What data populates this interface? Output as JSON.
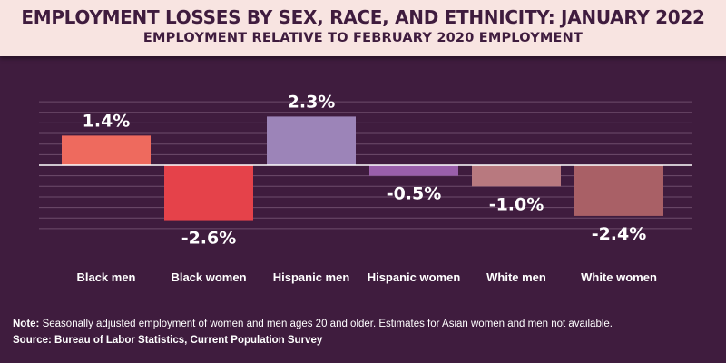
{
  "header": {
    "title": "EMPLOYMENT LOSSES BY SEX, RACE, AND ETHNICITY: JANUARY 2022",
    "subtitle": "EMPLOYMENT RELATIVE TO FEBRUARY 2020 EMPLOYMENT"
  },
  "chart_data": {
    "type": "bar",
    "title": "EMPLOYMENT LOSSES BY SEX, RACE, AND ETHNICITY: JANUARY 2022",
    "subtitle": "EMPLOYMENT RELATIVE TO FEBRUARY 2020 EMPLOYMENT",
    "categories": [
      "Black men",
      "Black women",
      "Hispanic men",
      "Hispanic women",
      "White men",
      "White women"
    ],
    "values": [
      1.4,
      -2.6,
      2.3,
      -0.5,
      -1.0,
      -2.4
    ],
    "value_labels": [
      "1.4%",
      "-2.6%",
      "2.3%",
      "-0.5%",
      "-1.0%",
      "-2.4%"
    ],
    "colors": [
      "#ee6a5e",
      "#e5424a",
      "#9c84b8",
      "#9a5fab",
      "#b8797f",
      "#a96066"
    ],
    "ylim": [
      -3,
      3
    ],
    "grid": true,
    "xlabel": "",
    "ylabel": ""
  },
  "footer": {
    "note_label": "Note:",
    "note_text": " Seasonally adjusted employment of women and men ages 20 and older. Estimates for Asian women and men not available.",
    "source_label": "Source:",
    "source_text": " Bureau of Labor Statistics, Current Population Survey"
  }
}
